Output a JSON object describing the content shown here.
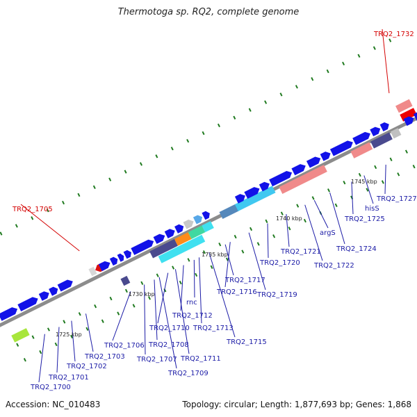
{
  "title": "Thermotoga sp. RQ2, complete genome",
  "footer": {
    "accession": "Accession: NC_010483",
    "topology": "Topology: circular; Length: 1,877,693 bp; Genes: 1,868"
  },
  "colors": {
    "backbone": "#8c8c8c",
    "gene_default": "#1212e8",
    "label_gene": "#1a1aa6",
    "label_highlight": "#d40000",
    "tick": "#1f7a1f"
  },
  "kbp_markers": [
    {
      "kbp": 1725,
      "label": "1725 kbp"
    },
    {
      "kbp": 1730,
      "label": "1730 kbp"
    },
    {
      "kbp": 1735,
      "label": "1735 kbp"
    },
    {
      "kbp": 1740,
      "label": "1740 kbp"
    },
    {
      "kbp": 1745,
      "label": "1745 kbp"
    }
  ],
  "gene_labels": [
    {
      "name": "TRQ2_1700",
      "highlight": false
    },
    {
      "name": "TRQ2_1701",
      "highlight": false
    },
    {
      "name": "TRQ2_1702",
      "highlight": false
    },
    {
      "name": "TRQ2_1703",
      "highlight": false
    },
    {
      "name": "TRQ2_1705",
      "highlight": true
    },
    {
      "name": "TRQ2_1706",
      "highlight": false
    },
    {
      "name": "TRQ2_1707",
      "highlight": false
    },
    {
      "name": "TRQ2_1708",
      "highlight": false
    },
    {
      "name": "TRQ2_1709",
      "highlight": false
    },
    {
      "name": "TRQ2_1710",
      "highlight": false
    },
    {
      "name": "TRQ2_1711",
      "highlight": false
    },
    {
      "name": "TRQ2_1712",
      "highlight": false
    },
    {
      "name": "rnc",
      "highlight": false
    },
    {
      "name": "TRQ2_1713",
      "highlight": false
    },
    {
      "name": "TRQ2_1715",
      "highlight": false
    },
    {
      "name": "TRQ2_1716",
      "highlight": false
    },
    {
      "name": "TRQ2_1717",
      "highlight": false
    },
    {
      "name": "TRQ2_1719",
      "highlight": false
    },
    {
      "name": "TRQ2_1720",
      "highlight": false
    },
    {
      "name": "TRQ2_1721",
      "highlight": false
    },
    {
      "name": "TRQ2_1722",
      "highlight": false
    },
    {
      "name": "argS",
      "highlight": false
    },
    {
      "name": "TRQ2_1724",
      "highlight": false
    },
    {
      "name": "TRQ2_1725",
      "highlight": false
    },
    {
      "name": "hisS",
      "highlight": false
    },
    {
      "name": "TRQ2_1727",
      "highlight": false
    },
    {
      "name": "TRQ2_1732",
      "highlight": true
    }
  ]
}
